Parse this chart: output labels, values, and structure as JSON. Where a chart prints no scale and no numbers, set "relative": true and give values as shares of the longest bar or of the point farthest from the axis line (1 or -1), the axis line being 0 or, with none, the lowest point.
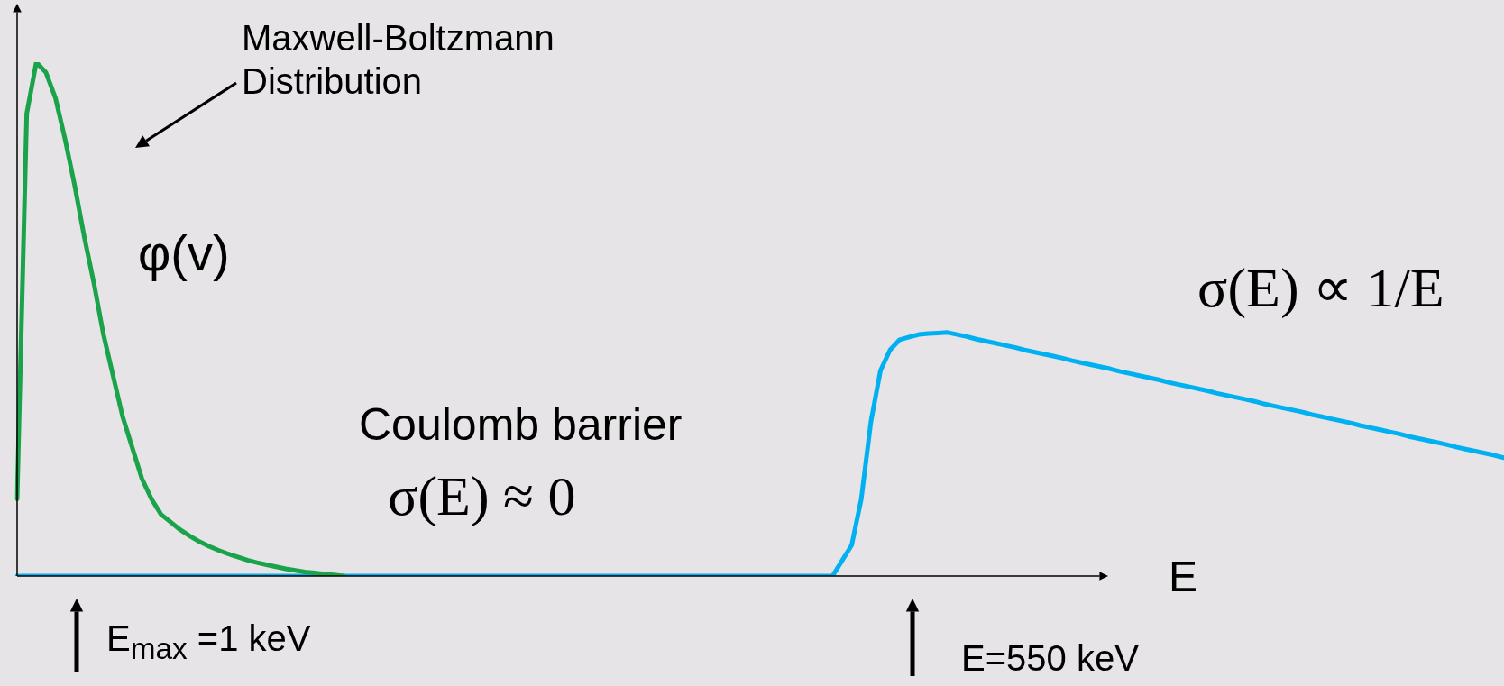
{
  "chart_data": {
    "type": "line",
    "relative": true,
    "xlabel": "E",
    "categories": [
      null,
      null,
      null,
      null,
      null,
      null,
      null,
      null,
      null,
      null,
      null,
      null,
      null,
      null,
      null,
      null,
      null,
      null,
      null,
      null,
      null,
      null,
      null,
      null,
      null,
      null,
      null,
      null,
      null,
      null,
      null,
      null,
      null,
      null,
      null,
      null,
      null,
      null,
      null,
      null,
      null,
      null,
      null,
      null,
      null,
      null,
      null,
      null,
      null,
      null,
      null,
      null,
      null,
      null,
      null,
      null,
      null,
      null,
      null,
      null,
      null,
      null,
      null,
      null,
      null,
      null,
      null,
      null,
      null,
      null,
      null,
      null,
      null,
      null,
      null,
      null,
      null,
      null,
      null,
      null,
      null,
      null,
      null,
      null,
      null,
      null,
      null,
      null,
      null,
      null,
      null,
      null,
      null,
      null,
      null,
      null,
      null,
      null,
      null,
      null,
      null,
      null,
      null,
      null,
      null,
      null,
      null,
      null,
      null,
      null,
      null,
      null,
      null,
      null,
      null,
      null,
      null,
      null,
      null,
      null,
      null,
      null,
      null,
      null,
      null,
      null,
      null,
      null,
      null,
      null,
      null,
      null,
      null,
      null,
      null,
      null,
      null,
      null,
      null,
      null,
      null,
      null,
      null,
      null,
      null,
      null,
      null,
      null,
      null,
      null,
      null,
      null,
      null,
      null,
      null,
      null
    ],
    "series": [
      {
        "color": "#1aa34a",
        "values": [
          0.15,
          0.9,
          1.0,
          0.98,
          0.93,
          0.85,
          0.76,
          0.66,
          0.57,
          0.47,
          0.39,
          0.31,
          0.25,
          0.19,
          0.15,
          0.12,
          0.105,
          0.09,
          0.078,
          0.067,
          0.058,
          0.05,
          0.043,
          0.037,
          0.031,
          0.026,
          0.022,
          0.018,
          0.014,
          0.011,
          0.008,
          0.006,
          0.004,
          0.002,
          0,
          null,
          null,
          null,
          null,
          null,
          null,
          null,
          null,
          null,
          null,
          null,
          null,
          null,
          null,
          null,
          null,
          null,
          null,
          null,
          null,
          null,
          null,
          null,
          null,
          null,
          null,
          null,
          null,
          null,
          null,
          null,
          null,
          null,
          null,
          null,
          null,
          null,
          null,
          null,
          null,
          null,
          null,
          null,
          null,
          null,
          null,
          null,
          null,
          null,
          null,
          null,
          null,
          null,
          null,
          null,
          null,
          null,
          null,
          null,
          null,
          null,
          null,
          null,
          null,
          null,
          null,
          null,
          null,
          null,
          null,
          null,
          null,
          null,
          null,
          null,
          null,
          null,
          null,
          null,
          null,
          null,
          null,
          null,
          null,
          null,
          null,
          null,
          null,
          null,
          null,
          null,
          null,
          null,
          null,
          null,
          null,
          null,
          null,
          null,
          null,
          null,
          null,
          null,
          null,
          null,
          null,
          null,
          null,
          null,
          null,
          null,
          null,
          null,
          null,
          null,
          null,
          null,
          null,
          null,
          null,
          null
        ]
      },
      {
        "color": "#00b0f0",
        "values": [
          0,
          0,
          0,
          0,
          0,
          0,
          0,
          0,
          0,
          0,
          0,
          0,
          0,
          0,
          0,
          0,
          0,
          0,
          0,
          0,
          0,
          0,
          0,
          0,
          0,
          0,
          0,
          0,
          0,
          0,
          0,
          0,
          0,
          0,
          0,
          0,
          0,
          0,
          0,
          0,
          0,
          0,
          0,
          0,
          0,
          0,
          0,
          0,
          0,
          0,
          0,
          0,
          0,
          0,
          0,
          0,
          0,
          0,
          0,
          0,
          0,
          0,
          0,
          0,
          0,
          0,
          0,
          0,
          0,
          0,
          0,
          0,
          0,
          0,
          0,
          0,
          0,
          0,
          0,
          0,
          0,
          0,
          0,
          0,
          0,
          0,
          0.03,
          0.06,
          0.15,
          0.3,
          0.4,
          0.44,
          0.46,
          0.465,
          0.47,
          0.472,
          0.473,
          0.474,
          0.47,
          0.466,
          0.461,
          0.457,
          0.453,
          0.449,
          0.445,
          0.44,
          0.436,
          0.432,
          0.428,
          0.424,
          0.419,
          0.415,
          0.411,
          0.407,
          0.403,
          0.398,
          0.394,
          0.39,
          0.386,
          0.382,
          0.377,
          0.373,
          0.369,
          0.365,
          0.361,
          0.356,
          0.352,
          0.348,
          0.344,
          0.34,
          0.335,
          0.331,
          0.327,
          0.323,
          0.319,
          0.314,
          0.31,
          0.306,
          0.302,
          0.298,
          0.293,
          0.289,
          0.285,
          0.281,
          0.277,
          0.272,
          0.268,
          0.264,
          0.26,
          0.256,
          0.251,
          0.247,
          0.243,
          0.239,
          0.235,
          0.23
        ]
      }
    ],
    "annotations": [
      "Maxwell-Boltzmann Distribution",
      "φ(v)",
      "σ(E) ∝ 1/E",
      "Coulomb barrier",
      "σ(E) ≈ 0",
      "E$_{max}$ =1 keV",
      "E=550 keV"
    ]
  }
}
